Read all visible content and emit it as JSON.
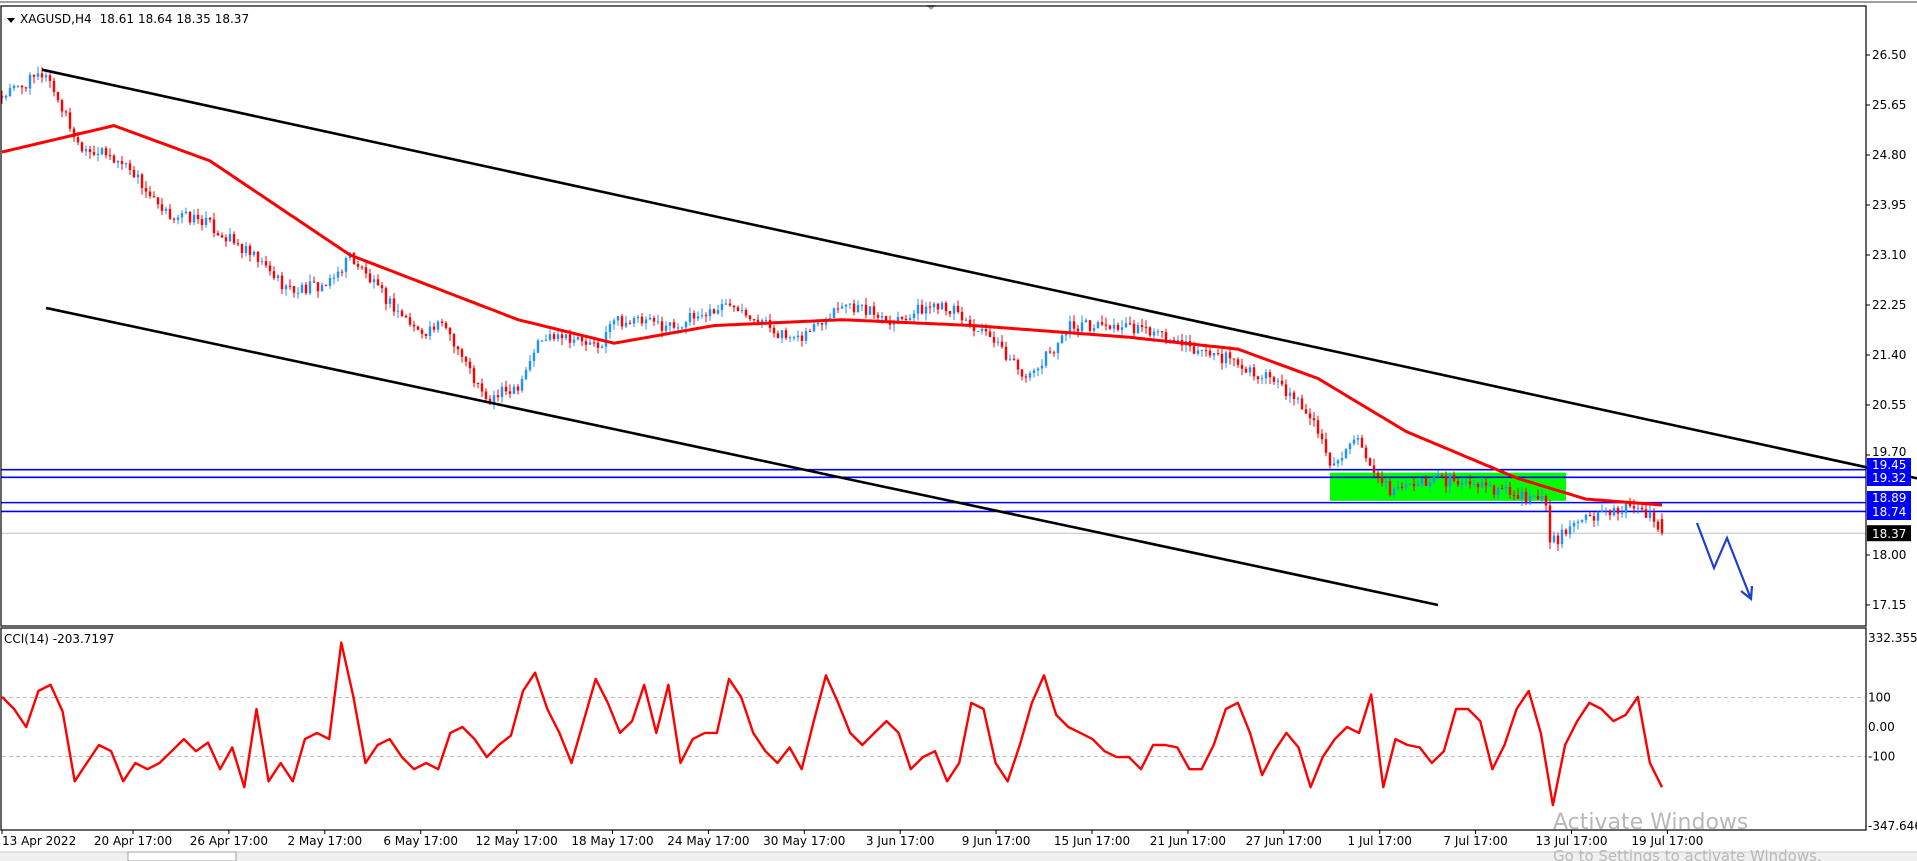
{
  "header": {
    "symbol": "XAGUSD,H4",
    "open": "18.61",
    "high": "18.64",
    "low": "18.35",
    "close": "18.37"
  },
  "colors": {
    "bull": "#1e90ff",
    "bear": "#ff0000",
    "ma": "#ff0000",
    "level": "#0000ff",
    "zone": "#00ff00",
    "cci": "#ff0000",
    "arrow": "#1f3fd0"
  },
  "price_axis": {
    "ticks": [
      "26.50",
      "25.65",
      "24.80",
      "23.95",
      "23.10",
      "22.25",
      "21.40",
      "20.55",
      "19.70",
      "18.00",
      "17.15"
    ],
    "levels": [
      "19.45",
      "19.32",
      "18.89",
      "18.74"
    ],
    "current": "18.37"
  },
  "cci": {
    "label": "CCI(14) -203.7197",
    "ticks": [
      "332.355",
      "100",
      "0.00",
      "-100",
      "-347.646"
    ]
  },
  "time_axis": [
    "13 Apr 2022",
    "20 Apr 17:00",
    "26 Apr 17:00",
    "2 May 17:00",
    "6 May 17:00",
    "12 May 17:00",
    "18 May 17:00",
    "24 May 17:00",
    "30 May 17:00",
    "3 Jun 17:00",
    "9 Jun 17:00",
    "15 Jun 17:00",
    "21 Jun 17:00",
    "27 Jun 17:00",
    "1 Jul 17:00",
    "7 Jul 17:00",
    "13 Jul 17:00",
    "19 Jul 17:00"
  ],
  "watermark": {
    "title": "Activate Windows",
    "subtitle": "Go to Settings to activate Windows."
  },
  "chart_data": {
    "type": "candlestick",
    "symbol": "XAGUSD",
    "timeframe": "H4",
    "ylim": [
      16.9,
      26.9
    ],
    "close_keypoints": [
      [
        0,
        25.8
      ],
      [
        11,
        26.2
      ],
      [
        19,
        25.0
      ],
      [
        32,
        24.6
      ],
      [
        40,
        23.8
      ],
      [
        50,
        23.7
      ],
      [
        64,
        23.0
      ],
      [
        72,
        22.5
      ],
      [
        82,
        22.6
      ],
      [
        87,
        23.1
      ],
      [
        94,
        22.5
      ],
      [
        104,
        21.8
      ],
      [
        111,
        21.9
      ],
      [
        121,
        20.6
      ],
      [
        129,
        20.9
      ],
      [
        134,
        21.6
      ],
      [
        139,
        21.8
      ],
      [
        149,
        21.5
      ],
      [
        153,
        22.0
      ],
      [
        168,
        21.9
      ],
      [
        183,
        22.3
      ],
      [
        198,
        21.6
      ],
      [
        210,
        22.3
      ],
      [
        223,
        22.0
      ],
      [
        235,
        22.3
      ],
      [
        248,
        21.6
      ],
      [
        257,
        21.0
      ],
      [
        267,
        21.9
      ],
      [
        277,
        21.9
      ],
      [
        287,
        21.8
      ],
      [
        297,
        21.5
      ],
      [
        304,
        21.4
      ],
      [
        317,
        21.0
      ],
      [
        327,
        20.4
      ],
      [
        332,
        19.6
      ],
      [
        339,
        19.9
      ],
      [
        343,
        19.3
      ],
      [
        347,
        19.1
      ],
      [
        359,
        19.3
      ],
      [
        376,
        19.1
      ],
      [
        386,
        18.9
      ],
      [
        387,
        18.2
      ],
      [
        396,
        18.6
      ],
      [
        403,
        18.8
      ],
      [
        411,
        18.7
      ],
      [
        415,
        18.37
      ]
    ],
    "moving_average": [
      [
        0,
        24.85
      ],
      [
        28,
        25.3
      ],
      [
        52,
        24.7
      ],
      [
        87,
        23.1
      ],
      [
        129,
        22.0
      ],
      [
        153,
        21.6
      ],
      [
        178,
        21.9
      ],
      [
        210,
        22.0
      ],
      [
        243,
        21.9
      ],
      [
        282,
        21.7
      ],
      [
        309,
        21.5
      ],
      [
        329,
        21.0
      ],
      [
        351,
        20.1
      ],
      [
        379,
        19.3
      ],
      [
        396,
        18.95
      ],
      [
        415,
        18.85
      ]
    ],
    "trendlines": [
      {
        "name": "upper",
        "from": [
          10,
          26.25
        ],
        "to": [
          479,
          19.3
        ]
      },
      {
        "name": "lower",
        "from": [
          11,
          22.2
        ],
        "to": [
          359,
          17.15
        ]
      }
    ],
    "horizontal_levels": [
      19.45,
      19.32,
      18.89,
      18.74
    ],
    "zone": {
      "from_bar": 332,
      "to_bar": 391,
      "top": 19.4,
      "bottom": 18.92
    },
    "cci_period": 14,
    "cci_ylim": [
      -347.646,
      332.355
    ],
    "cci_values": [
      102,
      61,
      0,
      122,
      143,
      53,
      -184,
      -122,
      -61,
      -82,
      -184,
      -122,
      -143,
      -122,
      -82,
      -41,
      -82,
      -53,
      -143,
      -69,
      -204,
      61,
      -184,
      -122,
      -184,
      -41,
      -20,
      -41,
      286,
      102,
      -122,
      -61,
      -41,
      -102,
      -143,
      -122,
      -143,
      -20,
      0,
      -41,
      -102,
      -61,
      -29,
      122,
      184,
      61,
      -20,
      -122,
      20,
      163,
      82,
      -20,
      20,
      143,
      -20,
      143,
      -122,
      -41,
      -20,
      -20,
      163,
      102,
      -20,
      -82,
      -122,
      -69,
      -143,
      20,
      175,
      82,
      -20,
      -61,
      -20,
      20,
      -20,
      -143,
      -102,
      -82,
      -184,
      -122,
      82,
      61,
      -122,
      -184,
      -61,
      82,
      175,
      41,
      0,
      -20,
      -41,
      -82,
      -102,
      -102,
      -143,
      -61,
      -61,
      -69,
      -143,
      -143,
      -61,
      61,
      82,
      -20,
      -163,
      -82,
      -20,
      -69,
      -204,
      -102,
      -41,
      0,
      -20,
      110,
      -204,
      -41,
      -61,
      -69,
      -122,
      -82,
      61,
      61,
      20,
      -143,
      -61,
      61,
      122,
      -20,
      -265,
      -61,
      20,
      82,
      61,
      20,
      41,
      102,
      -122,
      -204
    ]
  }
}
